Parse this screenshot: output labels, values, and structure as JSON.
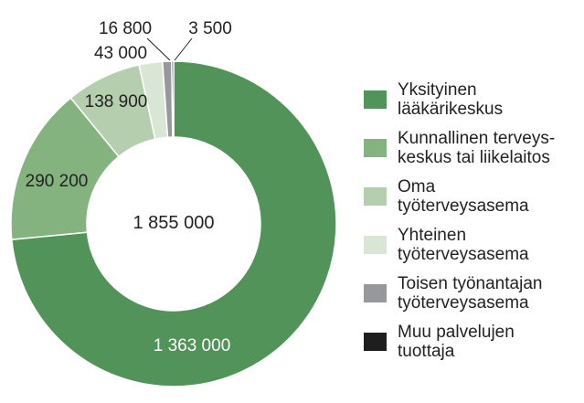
{
  "chart_data": {
    "type": "pie",
    "variant": "donut",
    "title": "",
    "total_label": "1 855 000",
    "slices": [
      {
        "name": "Yksityinen\nlääkärikeskus",
        "value": 1363000,
        "label": "1 363 000",
        "color": "#52935a"
      },
      {
        "name": "Kunnallinen terveys-\nkeskus tai liikelaitos",
        "value": 290200,
        "label": "290 200",
        "color": "#85b380"
      },
      {
        "name": "Oma\ntyöterveysasema",
        "value": 138900,
        "label": "138 900",
        "color": "#b5cfae"
      },
      {
        "name": "Yhteinen\ntyöterveysasema",
        "value": 43000,
        "label": "43 000",
        "color": "#d9e6d6"
      },
      {
        "name": "Toisen työnantajan\ntyöterveysasema",
        "value": 16800,
        "label": "16 800",
        "color": "#97989c"
      },
      {
        "name": "Muu palvelujen\ntuottaja",
        "value": 3500,
        "label": "3 500",
        "color": "#1e1e1e"
      }
    ],
    "legend_position": "right"
  }
}
